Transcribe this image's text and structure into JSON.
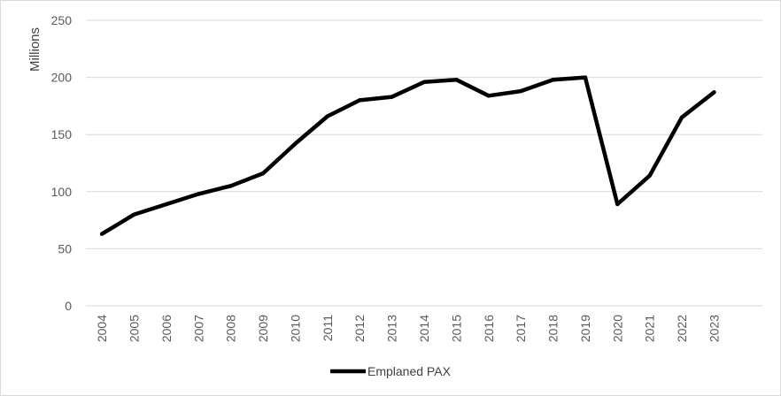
{
  "chart_data": {
    "type": "line",
    "title": "",
    "xlabel": "",
    "ylabel": "Millions",
    "ylim": [
      0,
      250
    ],
    "yticks": [
      0,
      50,
      100,
      150,
      200,
      250
    ],
    "grid": true,
    "legend_position": "bottom",
    "categories": [
      "2004",
      "2005",
      "2006",
      "2007",
      "2008",
      "2009",
      "2010",
      "2011",
      "2012",
      "2013",
      "2014",
      "2015",
      "2016",
      "2017",
      "2018",
      "2019",
      "2020",
      "2021",
      "2022",
      "2023"
    ],
    "series": [
      {
        "name": "Emplaned PAX",
        "color": "#000000",
        "values": [
          63,
          80,
          89,
          98,
          105,
          116,
          142,
          166,
          180,
          183,
          196,
          198,
          184,
          188,
          198,
          200,
          89,
          114,
          165,
          187
        ]
      }
    ]
  }
}
